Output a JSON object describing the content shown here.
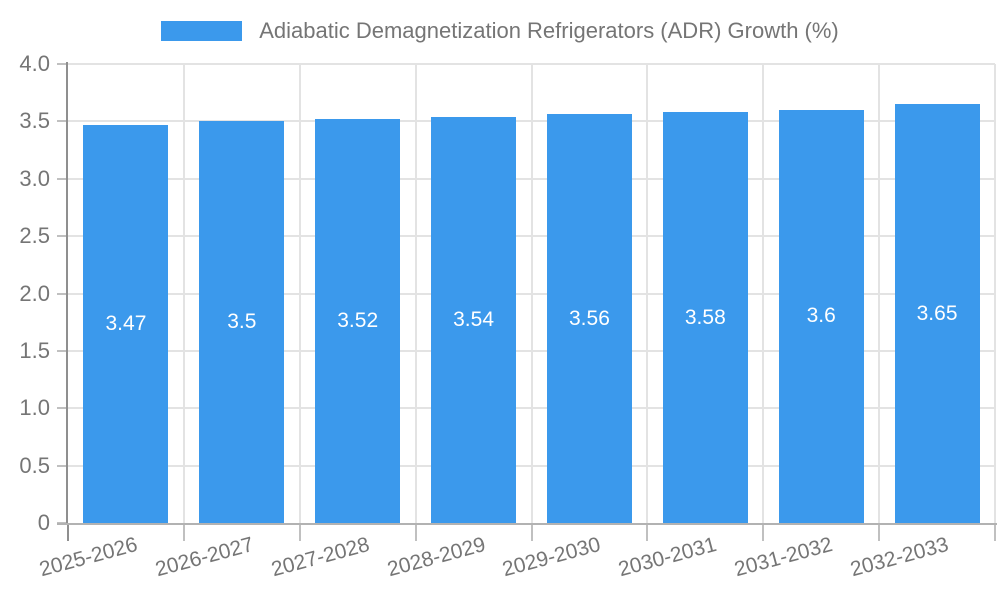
{
  "chart_data": {
    "type": "bar",
    "title": "Adiabatic Demagnetization Refrigerators (ADR) Growth (%)",
    "categories": [
      "2025-2026",
      "2026-2027",
      "2027-2028",
      "2028-2029",
      "2029-2030",
      "2030-2031",
      "2031-2032",
      "2032-2033"
    ],
    "values": [
      3.47,
      3.5,
      3.52,
      3.54,
      3.56,
      3.58,
      3.6,
      3.65
    ],
    "value_labels": [
      "3.47",
      "3.5",
      "3.52",
      "3.54",
      "3.56",
      "3.58",
      "3.6",
      "3.65"
    ],
    "xlabel": "",
    "ylabel": "",
    "ylim": [
      0,
      4
    ],
    "ytick_labels": [
      "4.0",
      "3.5",
      "3.0",
      "2.5",
      "2.0",
      "1.5",
      "1.0",
      "0.5",
      "0"
    ],
    "grid": true,
    "legend_position": "top",
    "colors": {
      "bar": "#3b99ec",
      "axis_text": "#757575",
      "bar_value_text": "#ffffff",
      "gridline": "#e3e3e3",
      "tick": "#c0c0c0",
      "y_axis_line": "#8f8f8f",
      "x_axis_line": "#b2b2b2"
    }
  }
}
